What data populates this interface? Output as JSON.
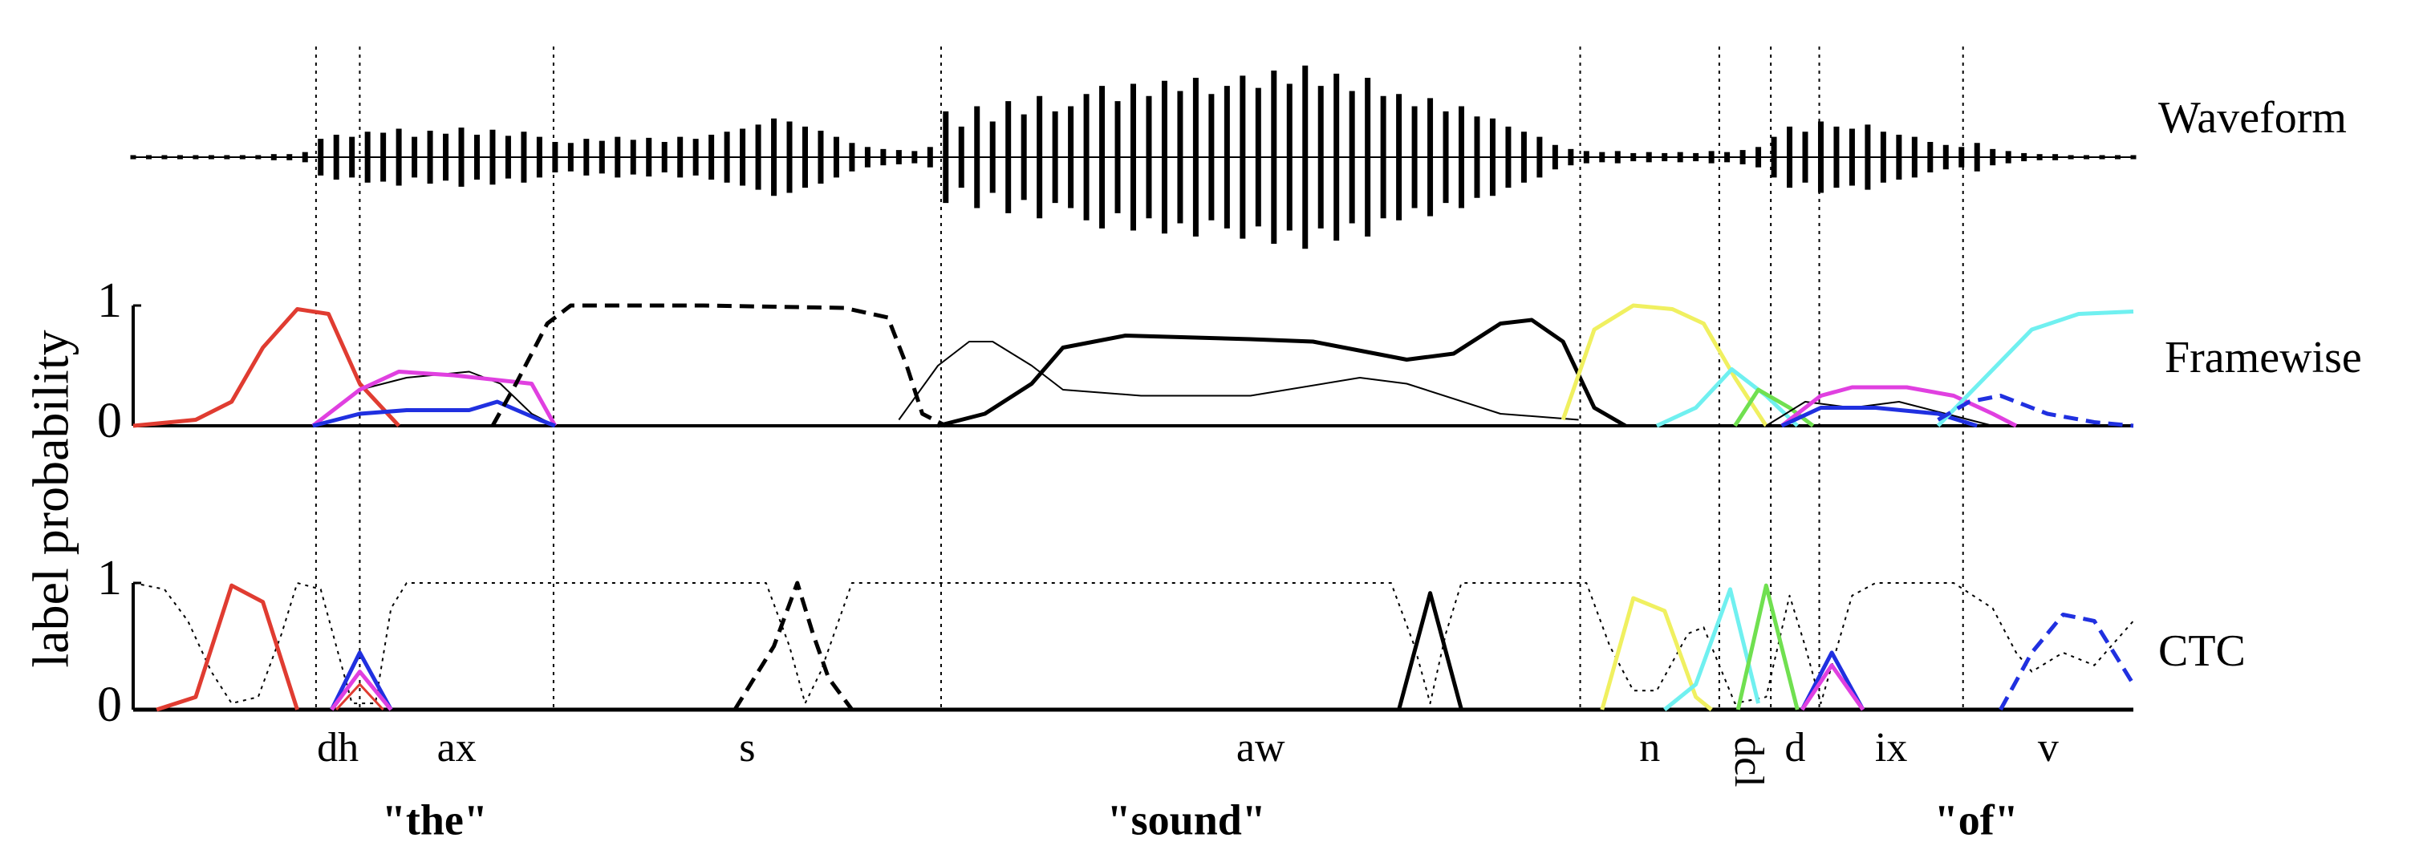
{
  "shared": {
    "ylabel": "label probability",
    "xlim": [
      0,
      128
    ],
    "phones": [
      {
        "label": "dh",
        "start": 11.7,
        "end": 14.5
      },
      {
        "label": "ax",
        "start": 14.5,
        "end": 26.9
      },
      {
        "label": "s",
        "start": 26.9,
        "end": 51.7
      },
      {
        "label": "aw",
        "start": 51.7,
        "end": 92.6
      },
      {
        "label": "n",
        "start": 92.6,
        "end": 101.5
      },
      {
        "label": "dcl",
        "start": 101.5,
        "end": 104.8,
        "rotated": true
      },
      {
        "label": "d",
        "start": 104.8,
        "end": 107.9
      },
      {
        "label": "ix",
        "start": 107.9,
        "end": 117.1
      },
      {
        "label": "v",
        "start": 117.1,
        "end": 128
      }
    ],
    "words": [
      {
        "label": "\"the\"",
        "start": 11.7,
        "end": 26.9
      },
      {
        "label": "\"sound\"",
        "start": 26.9,
        "end": 107.9
      },
      {
        "label": "\"of\"",
        "start": 107.9,
        "end": 128
      }
    ]
  },
  "chart_data": [
    {
      "type": "waveform",
      "label": "Waveform",
      "ylim": [
        -1,
        1
      ],
      "color": "#000000",
      "x": [
        0,
        1,
        2,
        3,
        4,
        5,
        6,
        7,
        8,
        9,
        10,
        11,
        12,
        13,
        14,
        15,
        16,
        17,
        18,
        19,
        20,
        21,
        22,
        23,
        24,
        25,
        26,
        27,
        28,
        29,
        30,
        31,
        32,
        33,
        34,
        35,
        36,
        37,
        38,
        39,
        40,
        41,
        42,
        43,
        44,
        45,
        46,
        47,
        48,
        49,
        50,
        51,
        52,
        53,
        54,
        55,
        56,
        57,
        58,
        59,
        60,
        61,
        62,
        63,
        64,
        65,
        66,
        67,
        68,
        69,
        70,
        71,
        72,
        73,
        74,
        75,
        76,
        77,
        78,
        79,
        80,
        81,
        82,
        83,
        84,
        85,
        86,
        87,
        88,
        89,
        90,
        91,
        92,
        93,
        94,
        95,
        96,
        97,
        98,
        99,
        100,
        101,
        102,
        103,
        104,
        105,
        106,
        107,
        108,
        109,
        110,
        111,
        112,
        113,
        114,
        115,
        116,
        117,
        118,
        119,
        120,
        121,
        122,
        123,
        124,
        125,
        126,
        127,
        128
      ],
      "values": [
        0.02,
        0.02,
        0.02,
        0.02,
        0.02,
        0.02,
        0.02,
        0.02,
        0.02,
        0.03,
        0.03,
        0.05,
        0.18,
        0.22,
        0.2,
        0.25,
        0.24,
        0.28,
        0.2,
        0.26,
        0.23,
        0.29,
        0.22,
        0.27,
        0.21,
        0.25,
        0.2,
        0.15,
        0.14,
        0.18,
        0.16,
        0.2,
        0.17,
        0.19,
        0.15,
        0.2,
        0.18,
        0.22,
        0.25,
        0.28,
        0.32,
        0.38,
        0.35,
        0.3,
        0.26,
        0.2,
        0.14,
        0.1,
        0.08,
        0.07,
        0.06,
        0.1,
        0.45,
        0.3,
        0.5,
        0.35,
        0.55,
        0.42,
        0.6,
        0.45,
        0.5,
        0.62,
        0.7,
        0.55,
        0.72,
        0.6,
        0.75,
        0.65,
        0.78,
        0.62,
        0.7,
        0.8,
        0.68,
        0.85,
        0.72,
        0.9,
        0.7,
        0.82,
        0.65,
        0.78,
        0.6,
        0.62,
        0.5,
        0.58,
        0.45,
        0.5,
        0.4,
        0.38,
        0.3,
        0.25,
        0.2,
        0.12,
        0.08,
        0.06,
        0.05,
        0.06,
        0.04,
        0.05,
        0.04,
        0.05,
        0.04,
        0.06,
        0.05,
        0.07,
        0.1,
        0.2,
        0.3,
        0.25,
        0.35,
        0.3,
        0.28,
        0.32,
        0.25,
        0.22,
        0.2,
        0.15,
        0.12,
        0.1,
        0.14,
        0.08,
        0.06,
        0.04,
        0.03,
        0.03,
        0.02,
        0.02,
        0.02,
        0.02,
        0.02
      ]
    },
    {
      "type": "line",
      "label": "Framewise",
      "ylim": [
        0,
        1
      ],
      "yticks": [
        0,
        1
      ],
      "series": [
        {
          "color": "#000000",
          "width": 4,
          "style": "solid",
          "x": [
            0,
            128
          ],
          "values": [
            0,
            0
          ]
        },
        {
          "color": "#e03c31",
          "width": 5,
          "style": "solid",
          "x": [
            0,
            4,
            6.3,
            8.3,
            10.5,
            12.5,
            14.5,
            17
          ],
          "values": [
            0,
            0.05,
            0.2,
            0.65,
            0.97,
            0.93,
            0.35,
            0
          ]
        },
        {
          "color": "#000000",
          "width": 2,
          "style": "solid",
          "x": [
            11.5,
            14.5,
            17.5,
            21.5,
            23.5,
            25.5,
            27
          ],
          "values": [
            0,
            0.3,
            0.4,
            0.45,
            0.35,
            0.1,
            0
          ]
        },
        {
          "color": "#e040e0",
          "width": 5,
          "style": "solid",
          "x": [
            11.5,
            14.5,
            17,
            20.5,
            25.5,
            27
          ],
          "values": [
            0,
            0.3,
            0.45,
            0.42,
            0.35,
            0
          ]
        },
        {
          "color": "#2030e0",
          "width": 5,
          "style": "solid",
          "x": [
            11.5,
            14.5,
            17.5,
            21.5,
            23.3,
            26,
            27
          ],
          "values": [
            0,
            0.1,
            0.13,
            0.13,
            0.2,
            0.05,
            0
          ]
        },
        {
          "color": "#000000",
          "width": 5,
          "style": "dashed",
          "x": [
            23,
            24.5,
            26.5,
            28,
            36.5,
            45.5,
            48.3,
            49.5,
            50.5,
            52
          ],
          "values": [
            0,
            0.35,
            0.85,
            1,
            1,
            0.98,
            0.9,
            0.5,
            0.1,
            0
          ]
        },
        {
          "color": "#000000",
          "width": 2,
          "style": "solid",
          "x": [
            49,
            51.5,
            53.5,
            55,
            57.5,
            59.5,
            64.5,
            71.5,
            78.5,
            81.5,
            87.5,
            92.5
          ],
          "values": [
            0.05,
            0.5,
            0.7,
            0.7,
            0.5,
            0.3,
            0.25,
            0.25,
            0.4,
            0.35,
            0.1,
            0.05
          ]
        },
        {
          "color": "#000000",
          "width": 5,
          "style": "solid",
          "x": [
            51.5,
            54.5,
            57.5,
            59.5,
            63.5,
            71.5,
            75.5,
            79.5,
            81.5,
            84.5,
            87.5,
            89.5,
            91.5,
            93.5,
            95.5
          ],
          "values": [
            0,
            0.1,
            0.35,
            0.65,
            0.75,
            0.72,
            0.7,
            0.6,
            0.55,
            0.6,
            0.85,
            0.88,
            0.7,
            0.15,
            0
          ]
        },
        {
          "color": "#f0f060",
          "width": 5,
          "style": "solid",
          "x": [
            91.5,
            93.5,
            96,
            98.5,
            100.5,
            102.5,
            104.5
          ],
          "values": [
            0.05,
            0.8,
            1,
            0.97,
            0.85,
            0.4,
            0
          ]
        },
        {
          "color": "#70f0f0",
          "width": 5,
          "style": "solid",
          "x": [
            97.5,
            100,
            102.3,
            104.5,
            106.5
          ],
          "values": [
            0,
            0.15,
            0.47,
            0.25,
            0
          ]
        },
        {
          "color": "#70e050",
          "width": 5,
          "style": "solid",
          "x": [
            102.5,
            104,
            106,
            107.5
          ],
          "values": [
            0,
            0.3,
            0.15,
            0
          ]
        },
        {
          "color": "#000000",
          "width": 2,
          "style": "solid",
          "x": [
            104.5,
            107,
            110,
            113,
            116,
            119
          ],
          "values": [
            0,
            0.2,
            0.15,
            0.2,
            0.1,
            0
          ]
        },
        {
          "color": "#e040e0",
          "width": 5,
          "style": "solid",
          "x": [
            105.5,
            108,
            110,
            113.5,
            116.5,
            119,
            120.5
          ],
          "values": [
            0,
            0.25,
            0.32,
            0.32,
            0.25,
            0.1,
            0
          ]
        },
        {
          "color": "#2030e0",
          "width": 5,
          "style": "solid",
          "x": [
            105.5,
            108,
            111.5,
            115.5,
            118
          ],
          "values": [
            0,
            0.15,
            0.15,
            0.1,
            0
          ]
        },
        {
          "color": "#70f0f0",
          "width": 5,
          "style": "solid",
          "x": [
            115.5,
            118.5,
            121.5,
            124.5,
            128
          ],
          "values": [
            0,
            0.4,
            0.8,
            0.93,
            0.95
          ]
        },
        {
          "color": "#2030e0",
          "width": 5,
          "style": "dashed",
          "x": [
            115.5,
            117.5,
            119.5,
            122.5,
            125.5,
            128
          ],
          "values": [
            0.05,
            0.2,
            0.25,
            0.1,
            0.03,
            0
          ]
        }
      ]
    },
    {
      "type": "line",
      "label": "CTC",
      "ylim": [
        0,
        1
      ],
      "yticks": [
        0,
        1
      ],
      "series": [
        {
          "color": "#000000",
          "width": 2,
          "style": "dotted",
          "x": [
            0,
            2,
            3.5,
            5,
            6.3,
            8,
            9.5,
            10.5,
            12,
            13,
            14,
            15.5,
            16.5,
            17.5,
            40.5,
            42,
            43,
            44,
            46,
            80.5,
            82,
            83,
            84,
            85,
            93,
            94.5,
            96,
            97.5,
            99.5,
            100.5,
            102.5,
            104.5,
            106,
            107,
            108,
            110,
            111.5,
            116.5,
            119,
            120.5,
            121.5,
            123.5,
            125.5,
            128
          ],
          "values": [
            1,
            0.95,
            0.7,
            0.3,
            0.05,
            0.1,
            0.6,
            1,
            0.95,
            0.5,
            0.05,
            0.05,
            0.8,
            1,
            1,
            0.5,
            0.05,
            0.3,
            1,
            1,
            0.5,
            0.05,
            0.6,
            1,
            1,
            0.5,
            0.15,
            0.15,
            0.6,
            0.65,
            0.05,
            0.1,
            0.9,
            0.5,
            0.05,
            0.9,
            1,
            1,
            0.8,
            0.45,
            0.3,
            0.45,
            0.35,
            0.7
          ]
        },
        {
          "color": "#000000",
          "width": 5,
          "style": "solid",
          "x": [
            0,
            128
          ],
          "values": [
            0,
            0
          ]
        },
        {
          "color": "#e03c31",
          "width": 5,
          "style": "solid",
          "x": [
            1.5,
            4,
            6.3,
            8.3,
            10.5
          ],
          "values": [
            0,
            0.1,
            0.98,
            0.85,
            0
          ]
        },
        {
          "color": "#2030e0",
          "width": 5,
          "style": "solid",
          "x": [
            12.7,
            14.5,
            16.5
          ],
          "values": [
            0,
            0.45,
            0
          ]
        },
        {
          "color": "#e040e0",
          "width": 5,
          "style": "solid",
          "x": [
            12.7,
            14.5,
            16.5
          ],
          "values": [
            0,
            0.3,
            0
          ]
        },
        {
          "color": "#e03c31",
          "width": 3,
          "style": "solid",
          "x": [
            13,
            14.5,
            16
          ],
          "values": [
            0,
            0.2,
            0
          ]
        },
        {
          "color": "#000000",
          "width": 5,
          "style": "dashed",
          "x": [
            38.5,
            41,
            42.5,
            43.5,
            44.5,
            46
          ],
          "values": [
            0,
            0.5,
            1,
            0.6,
            0.25,
            0
          ]
        },
        {
          "color": "#000000",
          "width": 5,
          "style": "solid",
          "x": [
            81,
            83,
            85
          ],
          "values": [
            0,
            0.92,
            0
          ]
        },
        {
          "color": "#f0f060",
          "width": 5,
          "style": "solid",
          "x": [
            94,
            96,
            98,
            100,
            101
          ],
          "values": [
            0,
            0.88,
            0.78,
            0.1,
            0
          ]
        },
        {
          "color": "#70f0f0",
          "width": 5,
          "style": "solid",
          "x": [
            98,
            100,
            102.2,
            104
          ],
          "values": [
            0,
            0.2,
            0.95,
            0.05
          ]
        },
        {
          "color": "#70e050",
          "width": 5,
          "style": "solid",
          "x": [
            102.7,
            104.5,
            106.5
          ],
          "values": [
            0,
            0.98,
            0
          ]
        },
        {
          "color": "#2030e0",
          "width": 5,
          "style": "solid",
          "x": [
            106.8,
            108.7,
            110.7
          ],
          "values": [
            0,
            0.45,
            0
          ]
        },
        {
          "color": "#e040e0",
          "width": 5,
          "style": "solid",
          "x": [
            106.8,
            108.7,
            110.7
          ],
          "values": [
            0,
            0.35,
            0
          ]
        },
        {
          "color": "#2030e0",
          "width": 5,
          "style": "dashed",
          "x": [
            119.5,
            121.5,
            123.5,
            125.5,
            128
          ],
          "values": [
            0,
            0.45,
            0.75,
            0.7,
            0.2
          ]
        }
      ]
    }
  ]
}
